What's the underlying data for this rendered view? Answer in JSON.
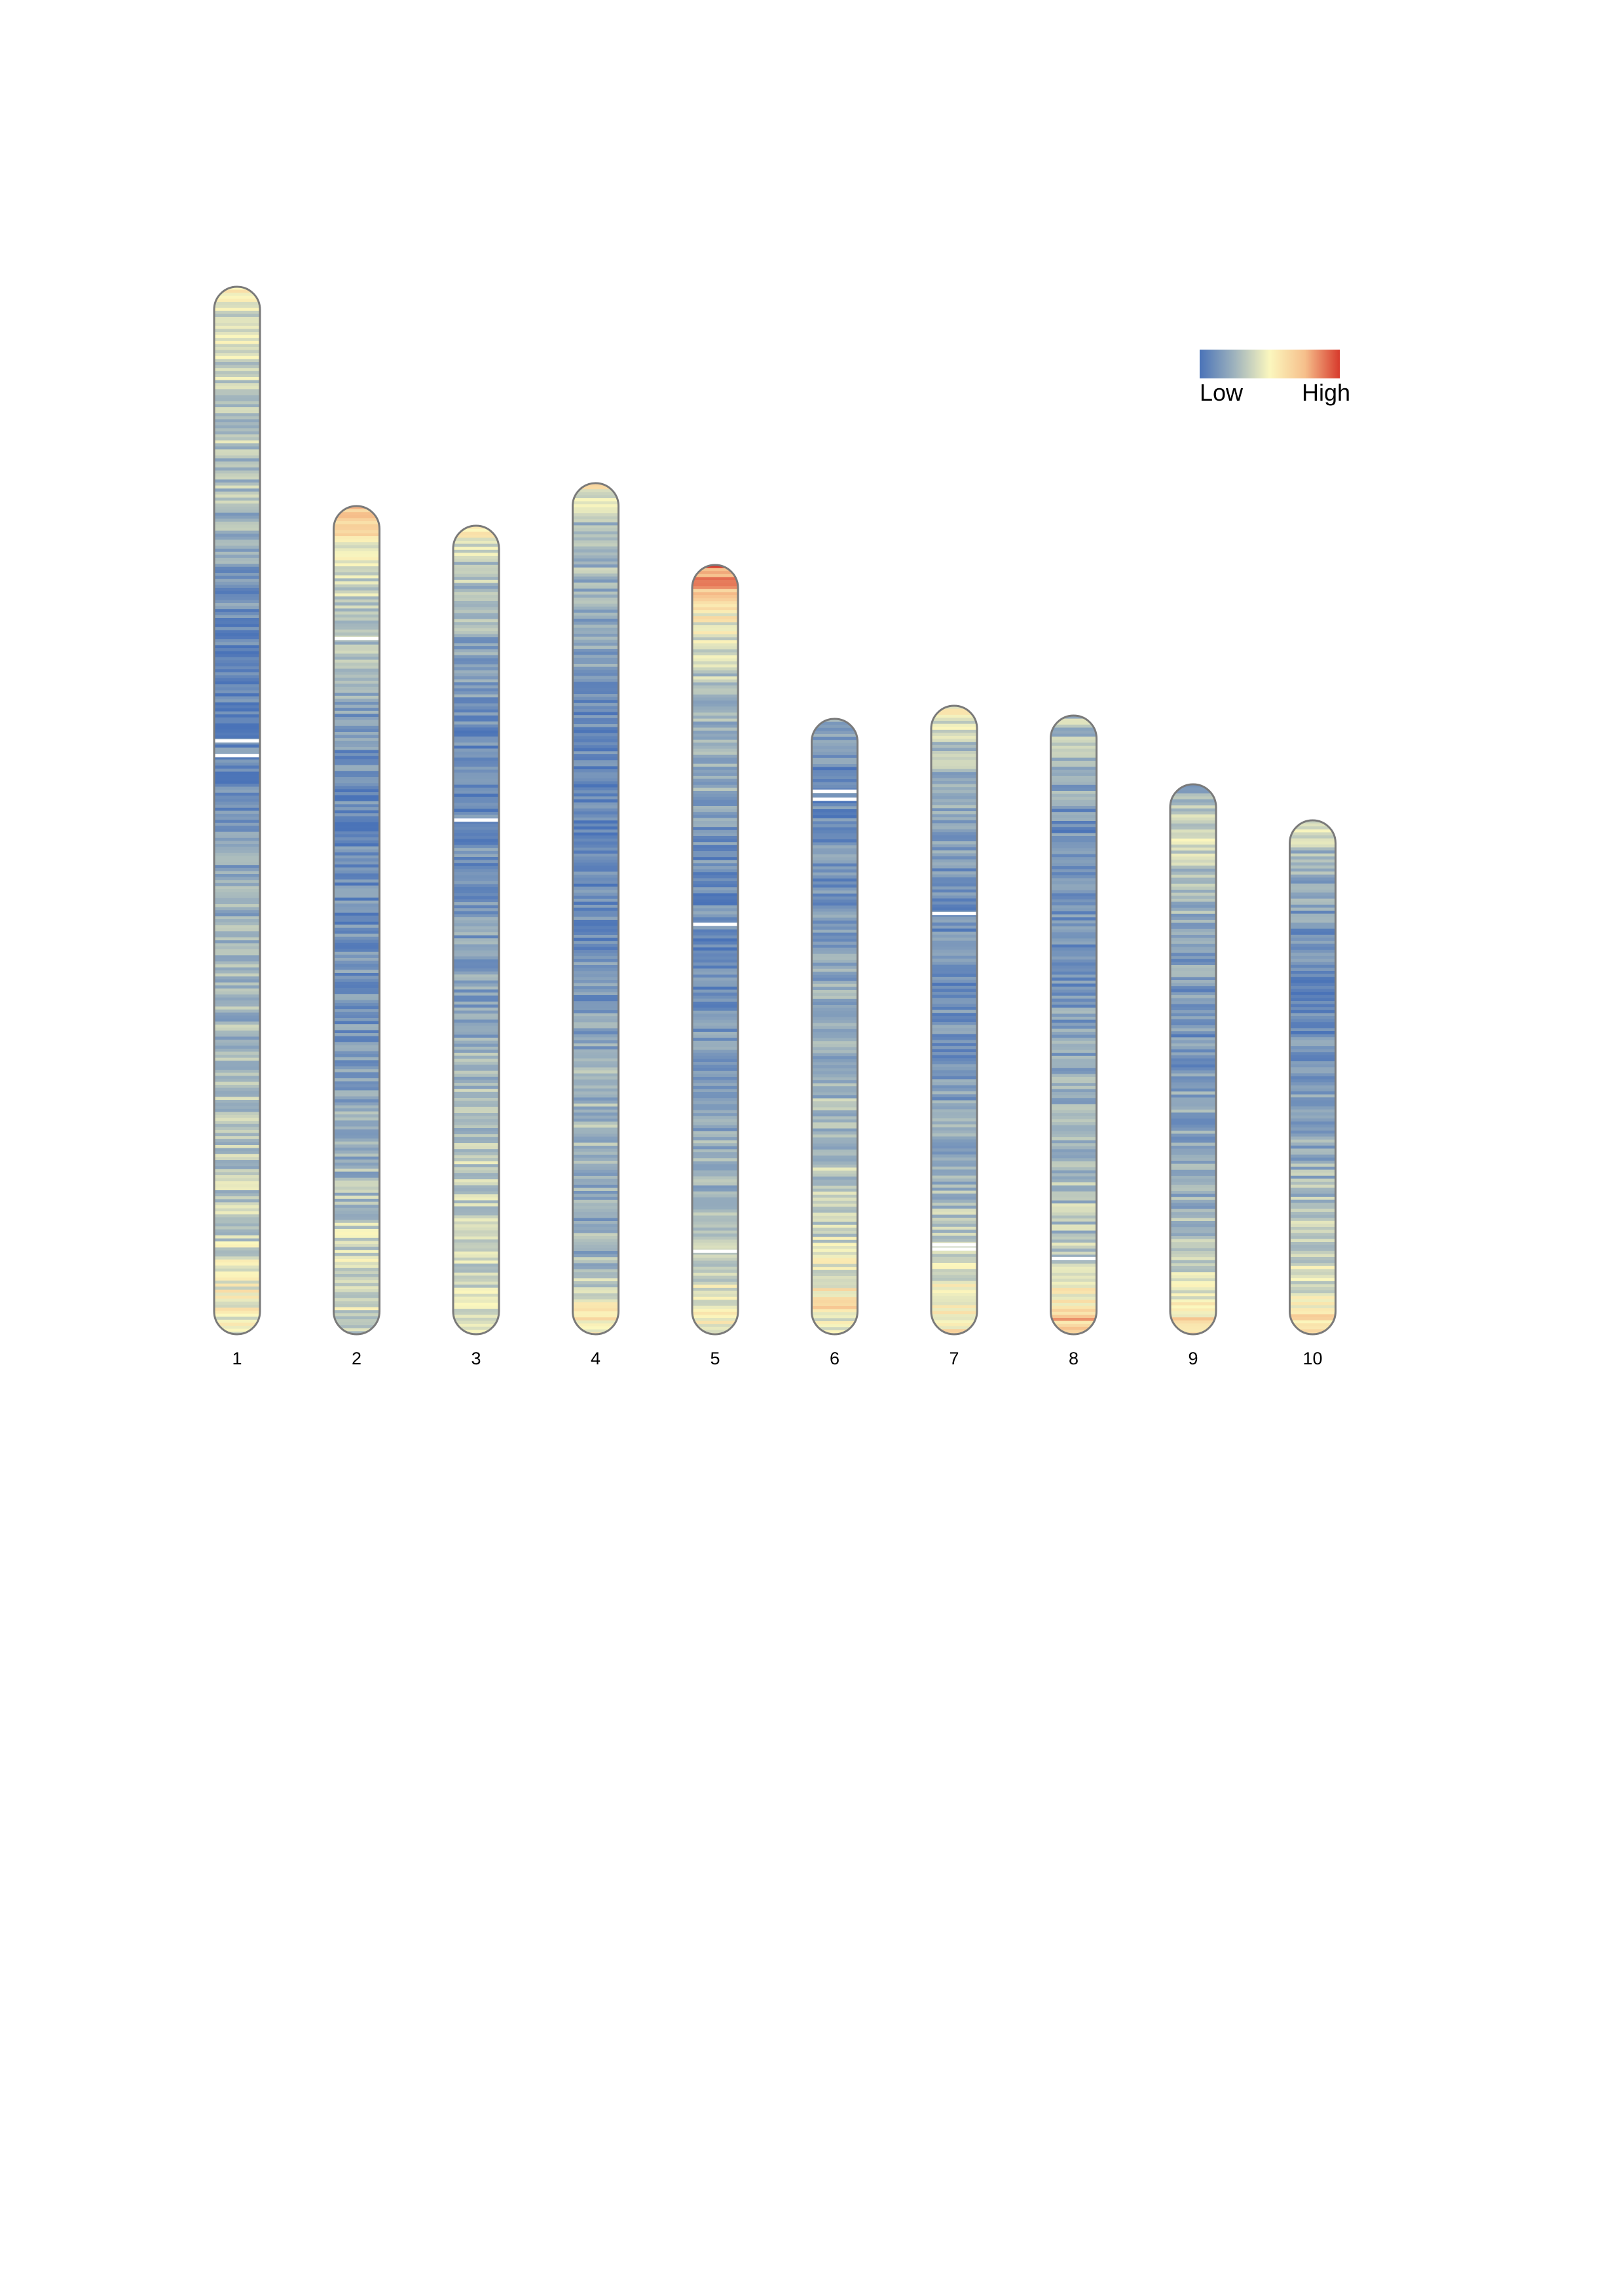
{
  "chart_data": {
    "type": "heatmap",
    "title": "",
    "description_hidden": false,
    "legend": {
      "low_label": "Low",
      "high_label": "High",
      "placement": "top-right",
      "colors": [
        "#4a73b8",
        "#9fb3bd",
        "#fbf7be",
        "#f6c08c",
        "#d73a2c"
      ]
    },
    "palette": {
      "low": "#4a73b8",
      "mid_low": "#9fb3bd",
      "mid": "#fbf7be",
      "mid_high": "#f6c08c",
      "high": "#d73a2c",
      "outline": "#7a7a7a"
    },
    "chromosomes": [
      {
        "label": "1",
        "length": 320,
        "profile": [
          [
            0.0,
            0.52
          ],
          [
            0.04,
            0.45
          ],
          [
            0.1,
            0.4
          ],
          [
            0.2,
            0.33
          ],
          [
            0.28,
            0.18
          ],
          [
            0.35,
            0.1
          ],
          [
            0.42,
            0.1
          ],
          [
            0.5,
            0.15
          ],
          [
            0.6,
            0.28
          ],
          [
            0.7,
            0.3
          ],
          [
            0.8,
            0.34
          ],
          [
            0.9,
            0.4
          ],
          [
            0.97,
            0.55
          ],
          [
            1.0,
            0.46
          ]
        ],
        "gaps": [
          0.432,
          0.446
        ]
      },
      {
        "label": "2",
        "length": 253,
        "profile": [
          [
            0.0,
            0.75
          ],
          [
            0.03,
            0.6
          ],
          [
            0.06,
            0.48
          ],
          [
            0.12,
            0.38
          ],
          [
            0.2,
            0.28
          ],
          [
            0.3,
            0.15
          ],
          [
            0.4,
            0.1
          ],
          [
            0.5,
            0.14
          ],
          [
            0.6,
            0.16
          ],
          [
            0.7,
            0.22
          ],
          [
            0.8,
            0.3
          ],
          [
            0.88,
            0.42
          ],
          [
            0.95,
            0.48
          ],
          [
            1.0,
            0.42
          ]
        ],
        "gaps": [
          0.158
        ]
      },
      {
        "label": "3",
        "length": 247,
        "profile": [
          [
            0.0,
            0.55
          ],
          [
            0.04,
            0.4
          ],
          [
            0.1,
            0.3
          ],
          [
            0.2,
            0.18
          ],
          [
            0.3,
            0.1
          ],
          [
            0.4,
            0.14
          ],
          [
            0.5,
            0.2
          ],
          [
            0.6,
            0.24
          ],
          [
            0.7,
            0.32
          ],
          [
            0.8,
            0.4
          ],
          [
            0.9,
            0.42
          ],
          [
            1.0,
            0.45
          ]
        ],
        "gaps": [
          0.362
        ]
      },
      {
        "label": "4",
        "length": 260,
        "profile": [
          [
            0.0,
            0.6
          ],
          [
            0.04,
            0.35
          ],
          [
            0.1,
            0.3
          ],
          [
            0.2,
            0.2
          ],
          [
            0.3,
            0.12
          ],
          [
            0.4,
            0.08
          ],
          [
            0.5,
            0.12
          ],
          [
            0.6,
            0.18
          ],
          [
            0.7,
            0.3
          ],
          [
            0.78,
            0.32
          ],
          [
            0.85,
            0.25
          ],
          [
            0.92,
            0.3
          ],
          [
            0.97,
            0.55
          ],
          [
            1.0,
            0.6
          ]
        ],
        "gaps": []
      },
      {
        "label": "5",
        "length": 235,
        "profile": [
          [
            0.0,
            0.9
          ],
          [
            0.03,
            0.75
          ],
          [
            0.06,
            0.55
          ],
          [
            0.12,
            0.42
          ],
          [
            0.2,
            0.3
          ],
          [
            0.3,
            0.24
          ],
          [
            0.4,
            0.12
          ],
          [
            0.5,
            0.12
          ],
          [
            0.6,
            0.16
          ],
          [
            0.7,
            0.2
          ],
          [
            0.8,
            0.3
          ],
          [
            0.9,
            0.4
          ],
          [
            0.96,
            0.5
          ],
          [
            1.0,
            0.56
          ]
        ],
        "gaps": [
          0.465,
          0.89
        ]
      },
      {
        "label": "6",
        "length": 188,
        "profile": [
          [
            0.0,
            0.2
          ],
          [
            0.05,
            0.15
          ],
          [
            0.15,
            0.12
          ],
          [
            0.25,
            0.16
          ],
          [
            0.35,
            0.2
          ],
          [
            0.5,
            0.26
          ],
          [
            0.6,
            0.3
          ],
          [
            0.7,
            0.34
          ],
          [
            0.8,
            0.4
          ],
          [
            0.9,
            0.5
          ],
          [
            0.96,
            0.62
          ],
          [
            1.0,
            0.4
          ]
        ],
        "gaps": [
          0.115,
          0.128
        ]
      },
      {
        "label": "7",
        "length": 192,
        "profile": [
          [
            0.0,
            0.6
          ],
          [
            0.04,
            0.42
          ],
          [
            0.1,
            0.3
          ],
          [
            0.2,
            0.2
          ],
          [
            0.3,
            0.12
          ],
          [
            0.4,
            0.12
          ],
          [
            0.5,
            0.16
          ],
          [
            0.6,
            0.2
          ],
          [
            0.7,
            0.26
          ],
          [
            0.8,
            0.34
          ],
          [
            0.88,
            0.44
          ],
          [
            0.95,
            0.52
          ],
          [
            1.0,
            0.58
          ]
        ],
        "gaps": [
          0.328,
          0.855,
          0.862
        ]
      },
      {
        "label": "8",
        "length": 189,
        "profile": [
          [
            0.0,
            0.35
          ],
          [
            0.08,
            0.32
          ],
          [
            0.16,
            0.15
          ],
          [
            0.25,
            0.12
          ],
          [
            0.35,
            0.14
          ],
          [
            0.45,
            0.18
          ],
          [
            0.55,
            0.24
          ],
          [
            0.65,
            0.3
          ],
          [
            0.75,
            0.34
          ],
          [
            0.85,
            0.36
          ],
          [
            0.92,
            0.5
          ],
          [
            0.97,
            0.7
          ],
          [
            1.0,
            0.78
          ]
        ],
        "gaps": [
          0.875
        ]
      },
      {
        "label": "9",
        "length": 168,
        "profile": [
          [
            0.0,
            0.25
          ],
          [
            0.05,
            0.35
          ],
          [
            0.1,
            0.45
          ],
          [
            0.18,
            0.3
          ],
          [
            0.3,
            0.22
          ],
          [
            0.45,
            0.15
          ],
          [
            0.55,
            0.2
          ],
          [
            0.65,
            0.24
          ],
          [
            0.75,
            0.28
          ],
          [
            0.85,
            0.38
          ],
          [
            0.92,
            0.48
          ],
          [
            0.97,
            0.64
          ],
          [
            1.0,
            0.56
          ]
        ],
        "gaps": []
      },
      {
        "label": "10",
        "length": 157,
        "profile": [
          [
            0.0,
            0.48
          ],
          [
            0.05,
            0.35
          ],
          [
            0.12,
            0.25
          ],
          [
            0.2,
            0.18
          ],
          [
            0.3,
            0.1
          ],
          [
            0.4,
            0.14
          ],
          [
            0.5,
            0.18
          ],
          [
            0.6,
            0.22
          ],
          [
            0.7,
            0.3
          ],
          [
            0.8,
            0.38
          ],
          [
            0.88,
            0.45
          ],
          [
            0.95,
            0.55
          ],
          [
            1.0,
            0.7
          ]
        ],
        "gaps": []
      }
    ]
  }
}
